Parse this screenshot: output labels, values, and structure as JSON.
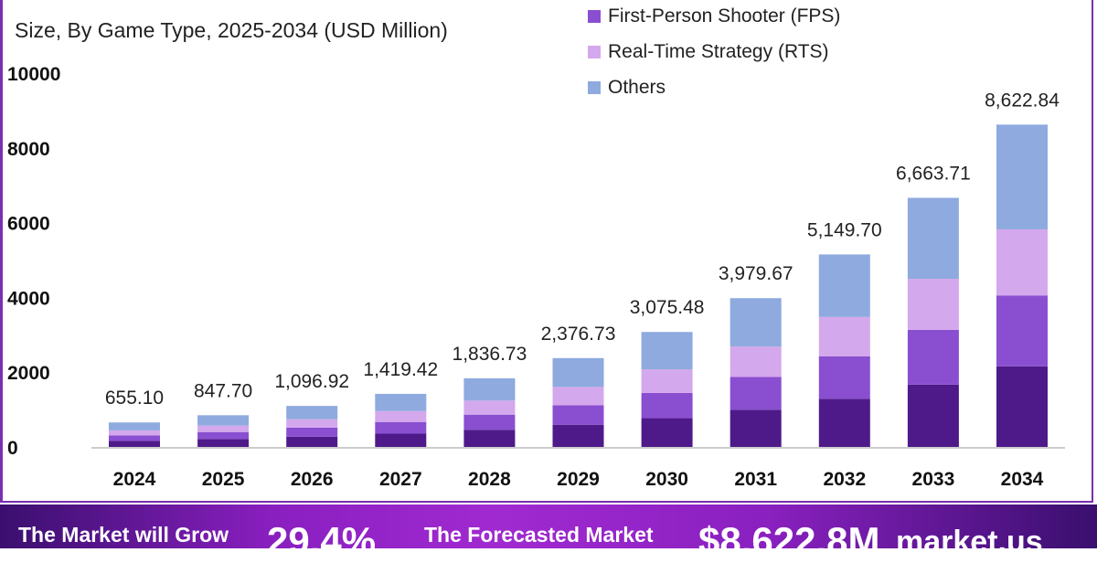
{
  "chart_data": {
    "type": "bar",
    "stacked": true,
    "subtitle": "Size, By Game Type, 2025-2034 (USD Million)",
    "categories": [
      "2024",
      "2025",
      "2026",
      "2027",
      "2028",
      "2029",
      "2030",
      "2031",
      "2032",
      "2033",
      "2034"
    ],
    "totals": [
      655.1,
      847.7,
      1096.92,
      1419.42,
      1836.73,
      2376.73,
      3075.48,
      3979.67,
      5149.7,
      6663.71,
      8622.84
    ],
    "total_labels": [
      "655.10",
      "847.70",
      "1,096.92",
      "1,419.42",
      "1,836.73",
      "2,376.73",
      "3,075.48",
      "3,979.67",
      "5,149.70",
      "6,663.71",
      "8,622.84"
    ],
    "series": [
      {
        "name": "",
        "color": "#4e1a8a",
        "values": [
          163.8,
          211.9,
          274.2,
          354.9,
          459.2,
          594.2,
          768.9,
          994.9,
          1287.4,
          1665.9,
          2155.7
        ]
      },
      {
        "name": "First-Person Shooter (FPS)",
        "color": "#8a4fd0",
        "values": [
          144.1,
          186.5,
          241.3,
          312.3,
          404.1,
          522.9,
          676.6,
          875.5,
          1132.9,
          1466.0,
          1897.0
        ]
      },
      {
        "name": "Real-Time Strategy (RTS)",
        "color": "#d4a8ec",
        "values": [
          134.3,
          173.8,
          224.9,
          291.0,
          376.5,
          487.2,
          630.5,
          815.8,
          1055.7,
          1366.1,
          1767.7
        ]
      },
      {
        "name": "Others",
        "color": "#8eaadf",
        "values": [
          212.9,
          275.5,
          356.5,
          461.3,
          596.9,
          772.4,
          999.5,
          1293.4,
          1673.7,
          2165.7,
          2802.4
        ]
      }
    ],
    "ylim": [
      0,
      10000
    ],
    "yticks": [
      "0",
      "2000",
      "4000",
      "6000",
      "8000",
      "10000"
    ],
    "legend_position": "top-right",
    "grid": false
  },
  "banner": {
    "grow_label": "The Market will Grow",
    "cagr": "29.4%",
    "forecast_label": "The Forecasted Market",
    "forecast_value": "$8,622.8M",
    "brand": "market.us"
  }
}
